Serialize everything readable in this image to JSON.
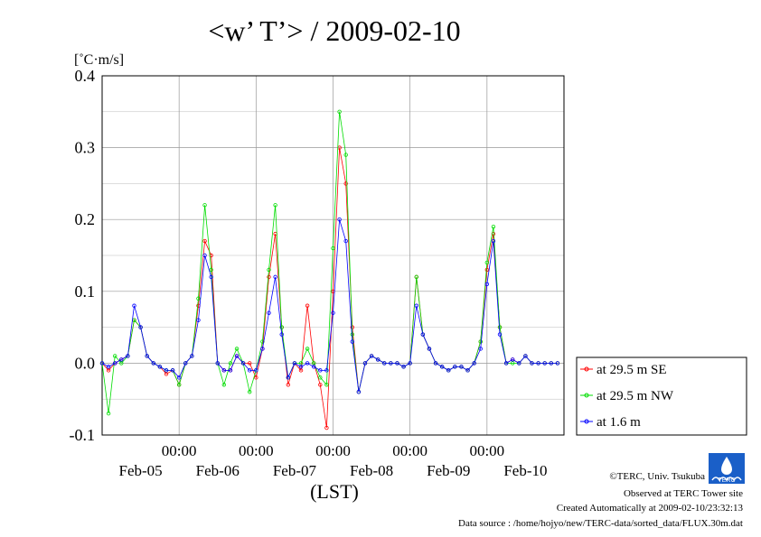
{
  "chart_data": {
    "type": "line",
    "title": "<w’ T’> / 2009-02-10",
    "unit_label": "[˚C·m/s]",
    "xlabel": "(LST)",
    "ylim": [
      -0.1,
      0.4
    ],
    "yticks": [
      "0.4",
      "0.3",
      "0.2",
      "0.1",
      "0.0",
      "-0.1"
    ],
    "ytick_values": [
      0.4,
      0.3,
      0.2,
      0.1,
      0.0,
      -0.1
    ],
    "xlim_hours": [
      0,
      144
    ],
    "x_ticks": [
      {
        "time": "00:00",
        "hour": 24,
        "day": "Feb-05",
        "day_hour": 12
      },
      {
        "time": "00:00",
        "hour": 48,
        "day": "Feb-06",
        "day_hour": 36
      },
      {
        "time": "00:00",
        "hour": 72,
        "day": "Feb-07",
        "day_hour": 60
      },
      {
        "time": "00:00",
        "hour": 96,
        "day": "Feb-08",
        "day_hour": 84
      },
      {
        "time": "00:00",
        "hour": 120,
        "day": "Feb-09",
        "day_hour": 108
      },
      {
        "time": "",
        "hour": 144,
        "day": "Feb-10",
        "day_hour": 132
      }
    ],
    "grid": true,
    "legend_position": "right-bottom",
    "series": [
      {
        "name": "at 29.5 m SE",
        "color": "#ff0000",
        "x": [
          0,
          2,
          4,
          6,
          8,
          10,
          12,
          14,
          16,
          18,
          20,
          22,
          24,
          26,
          28,
          30,
          32,
          34,
          36,
          38,
          40,
          42,
          44,
          46,
          48,
          50,
          52,
          54,
          56,
          58,
          60,
          62,
          64,
          66,
          68,
          70,
          72,
          74,
          76,
          78,
          80,
          82,
          84,
          86,
          88,
          90,
          92,
          94,
          96,
          98,
          100,
          102,
          104,
          106,
          108,
          110,
          112,
          114,
          116,
          118,
          120,
          122,
          124,
          126,
          128,
          130,
          132,
          134,
          136,
          138,
          140,
          142
        ],
        "y": [
          0.0,
          -0.01,
          0.0,
          0.005,
          0.01,
          0.06,
          0.05,
          0.01,
          0.0,
          -0.005,
          -0.015,
          -0.01,
          -0.03,
          0.0,
          0.01,
          0.08,
          0.17,
          0.15,
          0.0,
          -0.01,
          -0.01,
          0.01,
          0.0,
          0.0,
          -0.02,
          0.02,
          0.12,
          0.18,
          0.05,
          -0.03,
          0.0,
          -0.01,
          0.08,
          0.0,
          -0.03,
          -0.09,
          0.1,
          0.3,
          0.25,
          0.05,
          -0.04,
          0.0,
          0.01,
          0.005,
          0.0,
          0.0,
          0.0,
          -0.005,
          0.0,
          0.12,
          0.04,
          0.02,
          0.0,
          -0.005,
          -0.01,
          -0.005,
          -0.005,
          -0.01,
          0.0,
          0.03,
          0.13,
          0.18,
          0.05,
          0.0,
          0.005,
          0.0,
          0.01,
          0.0,
          0.0,
          0.0,
          0.0,
          0.0
        ],
        "legend": "at 29.5 m SE"
      },
      {
        "name": "at 29.5 m NW",
        "color": "#00dd00",
        "x": [
          0,
          2,
          4,
          6,
          8,
          10,
          12,
          14,
          16,
          18,
          20,
          22,
          24,
          26,
          28,
          30,
          32,
          34,
          36,
          38,
          40,
          42,
          44,
          46,
          48,
          50,
          52,
          54,
          56,
          58,
          60,
          62,
          64,
          66,
          68,
          70,
          72,
          74,
          76,
          78,
          80,
          82,
          84,
          86,
          88,
          90,
          92,
          94,
          96,
          98,
          100,
          102,
          104,
          106,
          108,
          110,
          112,
          114,
          116,
          118,
          120,
          122,
          124,
          126,
          128,
          130,
          132,
          134,
          136,
          138,
          140,
          142
        ],
        "y": [
          0.0,
          -0.07,
          0.01,
          0.0,
          0.01,
          0.06,
          0.05,
          0.01,
          0.0,
          -0.005,
          -0.01,
          -0.01,
          -0.03,
          0.0,
          0.01,
          0.09,
          0.22,
          0.13,
          0.0,
          -0.03,
          0.0,
          0.02,
          0.0,
          -0.04,
          -0.01,
          0.03,
          0.13,
          0.22,
          0.05,
          -0.02,
          0.0,
          0.0,
          0.02,
          0.0,
          -0.02,
          -0.03,
          0.16,
          0.35,
          0.29,
          0.04,
          -0.04,
          0.0,
          0.01,
          0.005,
          0.0,
          0.0,
          0.0,
          -0.005,
          0.0,
          0.12,
          0.04,
          0.02,
          0.0,
          -0.005,
          -0.01,
          -0.005,
          -0.005,
          -0.01,
          0.0,
          0.03,
          0.14,
          0.19,
          0.05,
          0.0,
          0.0,
          0.0,
          0.01,
          0.0,
          0.0,
          0.0,
          0.0,
          0.0
        ],
        "legend": "at 29.5 m NW"
      },
      {
        "name": "at 1.6 m",
        "color": "#0000ff",
        "x": [
          0,
          2,
          4,
          6,
          8,
          10,
          12,
          14,
          16,
          18,
          20,
          22,
          24,
          26,
          28,
          30,
          32,
          34,
          36,
          38,
          40,
          42,
          44,
          46,
          48,
          50,
          52,
          54,
          56,
          58,
          60,
          62,
          64,
          66,
          68,
          70,
          72,
          74,
          76,
          78,
          80,
          82,
          84,
          86,
          88,
          90,
          92,
          94,
          96,
          98,
          100,
          102,
          104,
          106,
          108,
          110,
          112,
          114,
          116,
          118,
          120,
          122,
          124,
          126,
          128,
          130,
          132,
          134,
          136,
          138,
          140,
          142
        ],
        "y": [
          0.0,
          -0.005,
          0.0,
          0.005,
          0.01,
          0.08,
          0.05,
          0.01,
          0.0,
          -0.005,
          -0.01,
          -0.01,
          -0.02,
          0.0,
          0.01,
          0.06,
          0.15,
          0.12,
          0.0,
          -0.01,
          -0.01,
          0.01,
          0.0,
          -0.01,
          -0.01,
          0.02,
          0.07,
          0.12,
          0.04,
          -0.02,
          0.0,
          -0.005,
          0.0,
          -0.005,
          -0.01,
          -0.01,
          0.07,
          0.2,
          0.17,
          0.03,
          -0.04,
          0.0,
          0.01,
          0.005,
          0.0,
          0.0,
          0.0,
          -0.005,
          0.0,
          0.08,
          0.04,
          0.02,
          0.0,
          -0.005,
          -0.01,
          -0.005,
          -0.005,
          -0.01,
          0.0,
          0.02,
          0.11,
          0.17,
          0.04,
          0.0,
          0.005,
          0.0,
          0.01,
          0.0,
          0.0,
          0.0,
          0.0,
          0.0
        ],
        "legend": "at 1.6 m"
      }
    ]
  },
  "credits": {
    "copyright": "©TERC, Univ. Tsukuba",
    "observed": "Observed at TERC Tower site",
    "created": "Created Automatically at 2009-02-10/23:32:13",
    "source": "Data source : /home/hojyo/new/TERC-data/sorted_data/FLUX.30m.dat",
    "logo_text": "TERC"
  }
}
